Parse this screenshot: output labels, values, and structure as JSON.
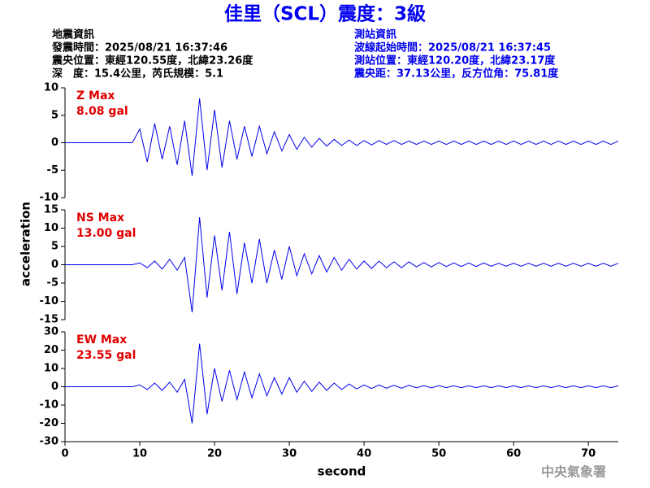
{
  "header": {
    "title": "佳里（SCL）震度：3級",
    "info_left": [
      "地震資訊",
      "發震時間：2025/08/21 16:37:46",
      "震央位置：東經120.55度，北緯23.26度",
      "深　度：15.4公里，芮氏規模：5.1"
    ],
    "info_right": [
      "測站資訊",
      "波線起始時間：2025/08/21 16:37:45",
      "測站位置：東經120.20度，北緯23.17度",
      "震央距：37.13公里，反方位角：75.81度"
    ],
    "footer": "中央氣象署"
  },
  "chart_data": [
    {
      "type": "line",
      "annotations": [
        "Z Max",
        "8.08 gal"
      ],
      "xlim": [
        0,
        74
      ],
      "ylim": [
        -10,
        10
      ],
      "yticks": [
        -10,
        -5,
        0,
        5,
        10
      ],
      "x": [
        0,
        1,
        2,
        3,
        4,
        5,
        6,
        7,
        8,
        9,
        10,
        11,
        12,
        13,
        14,
        15,
        16,
        17,
        18,
        19,
        20,
        21,
        22,
        23,
        24,
        25,
        26,
        27,
        28,
        29,
        30,
        31,
        32,
        33,
        34,
        35,
        36,
        37,
        38,
        39,
        40,
        41,
        42,
        43,
        44,
        45,
        46,
        47,
        48,
        49,
        50,
        51,
        52,
        53,
        54,
        55,
        56,
        57,
        58,
        59,
        60,
        61,
        62,
        63,
        64,
        65,
        66,
        67,
        68,
        69,
        70,
        71,
        72,
        73,
        74
      ],
      "series": [
        {
          "color": "#0000ee",
          "values": [
            0,
            0,
            0,
            0,
            0,
            0,
            0,
            0,
            0,
            0,
            2.5,
            -3.5,
            3.5,
            -3,
            3,
            -4,
            4,
            -6,
            8.08,
            -5,
            6,
            -4.5,
            4,
            -3,
            3,
            -2.5,
            3,
            -2,
            2,
            -1.5,
            1.5,
            -1.2,
            1,
            -0.8,
            0.8,
            -0.6,
            0.6,
            -0.5,
            0.5,
            -0.5,
            0.4,
            -0.4,
            0.4,
            -0.3,
            0.4,
            -0.3,
            0.3,
            -0.3,
            0.3,
            -0.3,
            0.3,
            -0.3,
            0.3,
            -0.3,
            0.3,
            -0.3,
            0.3,
            -0.3,
            0.3,
            -0.3,
            0.3,
            -0.3,
            0.3,
            -0.3,
            0.3,
            -0.3,
            0.3,
            -0.3,
            0.3,
            -0.3,
            0.3,
            -0.3,
            0.3,
            -0.3,
            0.3
          ]
        }
      ]
    },
    {
      "type": "line",
      "annotations": [
        "NS Max",
        "13.00 gal"
      ],
      "ylabel": "acceleration",
      "xlim": [
        0,
        74
      ],
      "ylim": [
        -15,
        15
      ],
      "yticks": [
        -15,
        -10,
        -5,
        0,
        5,
        10,
        15
      ],
      "x": [
        0,
        1,
        2,
        3,
        4,
        5,
        6,
        7,
        8,
        9,
        10,
        11,
        12,
        13,
        14,
        15,
        16,
        17,
        18,
        19,
        20,
        21,
        22,
        23,
        24,
        25,
        26,
        27,
        28,
        29,
        30,
        31,
        32,
        33,
        34,
        35,
        36,
        37,
        38,
        39,
        40,
        41,
        42,
        43,
        44,
        45,
        46,
        47,
        48,
        49,
        50,
        51,
        52,
        53,
        54,
        55,
        56,
        57,
        58,
        59,
        60,
        61,
        62,
        63,
        64,
        65,
        66,
        67,
        68,
        69,
        70,
        71,
        72,
        73,
        74
      ],
      "series": [
        {
          "color": "#0000ee",
          "values": [
            0,
            0,
            0,
            0,
            0,
            0,
            0,
            0,
            0,
            0,
            0.5,
            -0.8,
            1,
            -1.2,
            1.5,
            -1.5,
            2,
            -13,
            13,
            -9,
            8,
            -7,
            9,
            -8,
            6,
            -5,
            7,
            -5,
            4,
            -4,
            5,
            -3,
            3,
            -2.5,
            2.5,
            -2,
            2,
            -1.5,
            1.5,
            -1.2,
            1,
            -1,
            1,
            -0.8,
            0.8,
            -0.8,
            0.8,
            -0.6,
            0.6,
            -0.6,
            0.6,
            -0.5,
            0.5,
            -0.5,
            0.5,
            -0.5,
            0.5,
            -0.4,
            0.4,
            -0.4,
            0.4,
            -0.4,
            0.4,
            -0.4,
            0.4,
            -0.4,
            0.4,
            -0.4,
            0.4,
            -0.4,
            0.4,
            -0.4,
            0.4,
            -0.4,
            0.4
          ]
        }
      ]
    },
    {
      "type": "line",
      "annotations": [
        "EW Max",
        "23.55 gal"
      ],
      "xlabel": "second",
      "xlim": [
        0,
        74
      ],
      "xticks": [
        0,
        10,
        20,
        30,
        40,
        50,
        60,
        70
      ],
      "ylim": [
        -30,
        30
      ],
      "yticks": [
        -30,
        -20,
        -10,
        0,
        10,
        20,
        30
      ],
      "x": [
        0,
        1,
        2,
        3,
        4,
        5,
        6,
        7,
        8,
        9,
        10,
        11,
        12,
        13,
        14,
        15,
        16,
        17,
        18,
        19,
        20,
        21,
        22,
        23,
        24,
        25,
        26,
        27,
        28,
        29,
        30,
        31,
        32,
        33,
        34,
        35,
        36,
        37,
        38,
        39,
        40,
        41,
        42,
        43,
        44,
        45,
        46,
        47,
        48,
        49,
        50,
        51,
        52,
        53,
        54,
        55,
        56,
        57,
        58,
        59,
        60,
        61,
        62,
        63,
        64,
        65,
        66,
        67,
        68,
        69,
        70,
        71,
        72,
        73,
        74
      ],
      "series": [
        {
          "color": "#0000ee",
          "values": [
            0,
            0,
            0,
            0,
            0,
            0,
            0,
            0,
            0,
            0,
            1,
            -1.5,
            2,
            -2,
            2.5,
            -3,
            4,
            -20,
            23.55,
            -15,
            10,
            -8,
            9,
            -7,
            8,
            -6,
            7,
            -5,
            5,
            -4,
            5,
            -3,
            3,
            -2.5,
            2.5,
            -2,
            2,
            -1.5,
            1.5,
            -1.2,
            1,
            -1,
            1,
            -0.8,
            0.8,
            -0.8,
            0.8,
            -0.6,
            0.6,
            -0.6,
            0.6,
            -0.5,
            0.5,
            -0.5,
            0.5,
            -0.5,
            0.5,
            -0.5,
            0.5,
            -0.5,
            0.5,
            -0.5,
            0.5,
            -0.5,
            0.5,
            -0.5,
            0.5,
            -0.5,
            0.5,
            -0.5,
            0.5,
            -0.5,
            0.5,
            -0.5,
            0.5
          ]
        }
      ]
    }
  ]
}
